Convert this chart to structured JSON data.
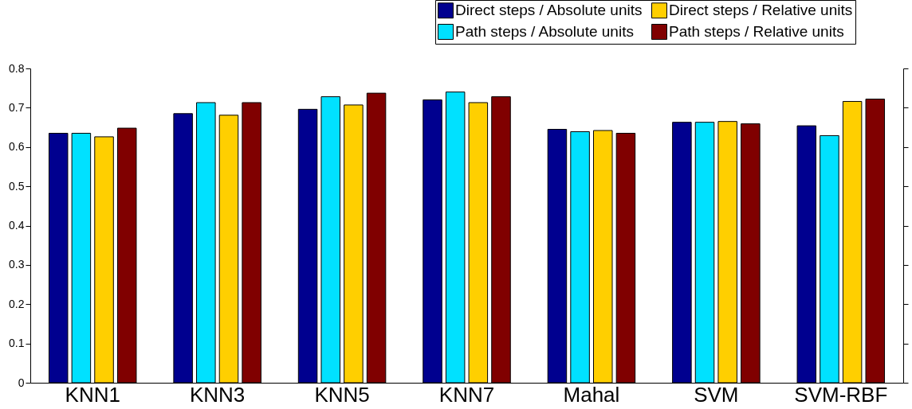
{
  "chart_data": {
    "type": "bar",
    "categories": [
      "KNN1",
      "KNN3",
      "KNN5",
      "KNN7",
      "Mahal",
      "SVM",
      "SVM-RBF"
    ],
    "series": [
      {
        "name": "Direct steps / Absolute units",
        "color": "#00008f",
        "values": [
          0.635,
          0.685,
          0.696,
          0.72,
          0.645,
          0.663,
          0.654
        ]
      },
      {
        "name": "Path steps / Absolute units",
        "color": "#00e1ff",
        "values": [
          0.635,
          0.713,
          0.728,
          0.74,
          0.639,
          0.663,
          0.629
        ]
      },
      {
        "name": "Direct steps / Relative units",
        "color": "#ffcf00",
        "values": [
          0.626,
          0.681,
          0.707,
          0.713,
          0.642,
          0.665,
          0.716
        ]
      },
      {
        "name": "Path steps / Relative units",
        "color": "#800000",
        "values": [
          0.648,
          0.713,
          0.737,
          0.728,
          0.635,
          0.659,
          0.722
        ]
      }
    ],
    "ylim": [
      0,
      0.8
    ],
    "yticks": [
      0,
      0.1,
      0.2,
      0.3,
      0.4,
      0.5,
      0.6,
      0.7,
      0.8
    ],
    "grid": false,
    "legend": "top right"
  }
}
